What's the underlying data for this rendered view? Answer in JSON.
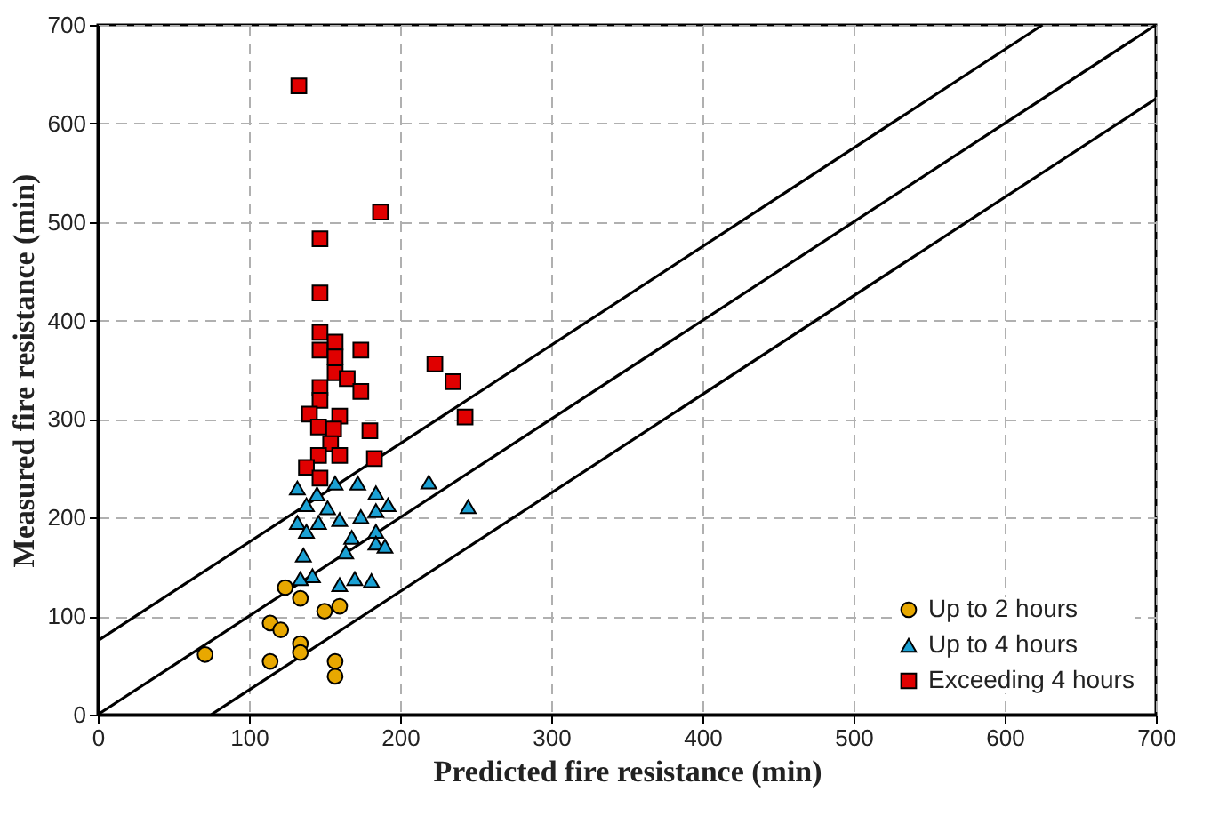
{
  "chart_data": {
    "type": "scatter",
    "xlabel": "Predicted fire resistance  (min)",
    "ylabel": "Measured fire resistance  (min)",
    "xlim": [
      0,
      700
    ],
    "ylim": [
      0,
      700
    ],
    "xticks": [
      0,
      100,
      200,
      300,
      400,
      500,
      600,
      700
    ],
    "yticks": [
      0,
      100,
      200,
      300,
      400,
      500,
      600,
      700
    ],
    "grid": true,
    "legend": "bottom right",
    "series": [
      {
        "name": "Up to 2 hours",
        "color": "#e8a800",
        "marker": "circle",
        "x": [
          124,
          134,
          150,
          160,
          114,
          121,
          134,
          134,
          71,
          114,
          157,
          157
        ],
        "values": [
          129,
          118,
          105,
          110,
          93,
          86,
          72,
          63,
          61,
          54,
          54,
          39
        ]
      },
      {
        "name": "Up to 4 hours",
        "color": "#1ba1d4",
        "marker": "triangle",
        "x": [
          132,
          145,
          157,
          172,
          184,
          219,
          245,
          138,
          152,
          132,
          146,
          160,
          174,
          184,
          192,
          138,
          184,
          168,
          184,
          164,
          136,
          142,
          134,
          160,
          170,
          181,
          190
        ],
        "values": [
          230,
          224,
          235,
          235,
          225,
          236,
          211,
          213,
          210,
          195,
          195,
          198,
          201,
          207,
          213,
          186,
          186,
          180,
          174,
          165,
          162,
          141,
          138,
          132,
          138,
          136,
          171
        ]
      },
      {
        "name": "Exceeding 4 hours",
        "color": "#e00000",
        "marker": "square",
        "x": [
          133,
          187,
          147,
          147,
          147,
          157,
          147,
          174,
          157,
          223,
          157,
          165,
          235,
          147,
          174,
          147,
          140,
          160,
          243,
          146,
          156,
          180,
          154,
          146,
          160,
          183,
          138,
          147
        ],
        "values": [
          638,
          510,
          483,
          428,
          388,
          378,
          370,
          370,
          363,
          356,
          347,
          341,
          338,
          332,
          328,
          319,
          305,
          303,
          302,
          292,
          290,
          288,
          275,
          263,
          263,
          260,
          251,
          240
        ]
      },
      {
        "type": "line",
        "color": "#000000",
        "marker": "none",
        "x": [
          0,
          625
        ],
        "values": [
          75,
          700
        ]
      },
      {
        "type": "line",
        "color": "#000000",
        "marker": "none",
        "x": [
          0,
          700
        ],
        "values": [
          0,
          700
        ]
      },
      {
        "type": "line",
        "color": "#000000",
        "marker": "none",
        "x": [
          75,
          700
        ],
        "values": [
          0,
          625
        ]
      }
    ]
  }
}
